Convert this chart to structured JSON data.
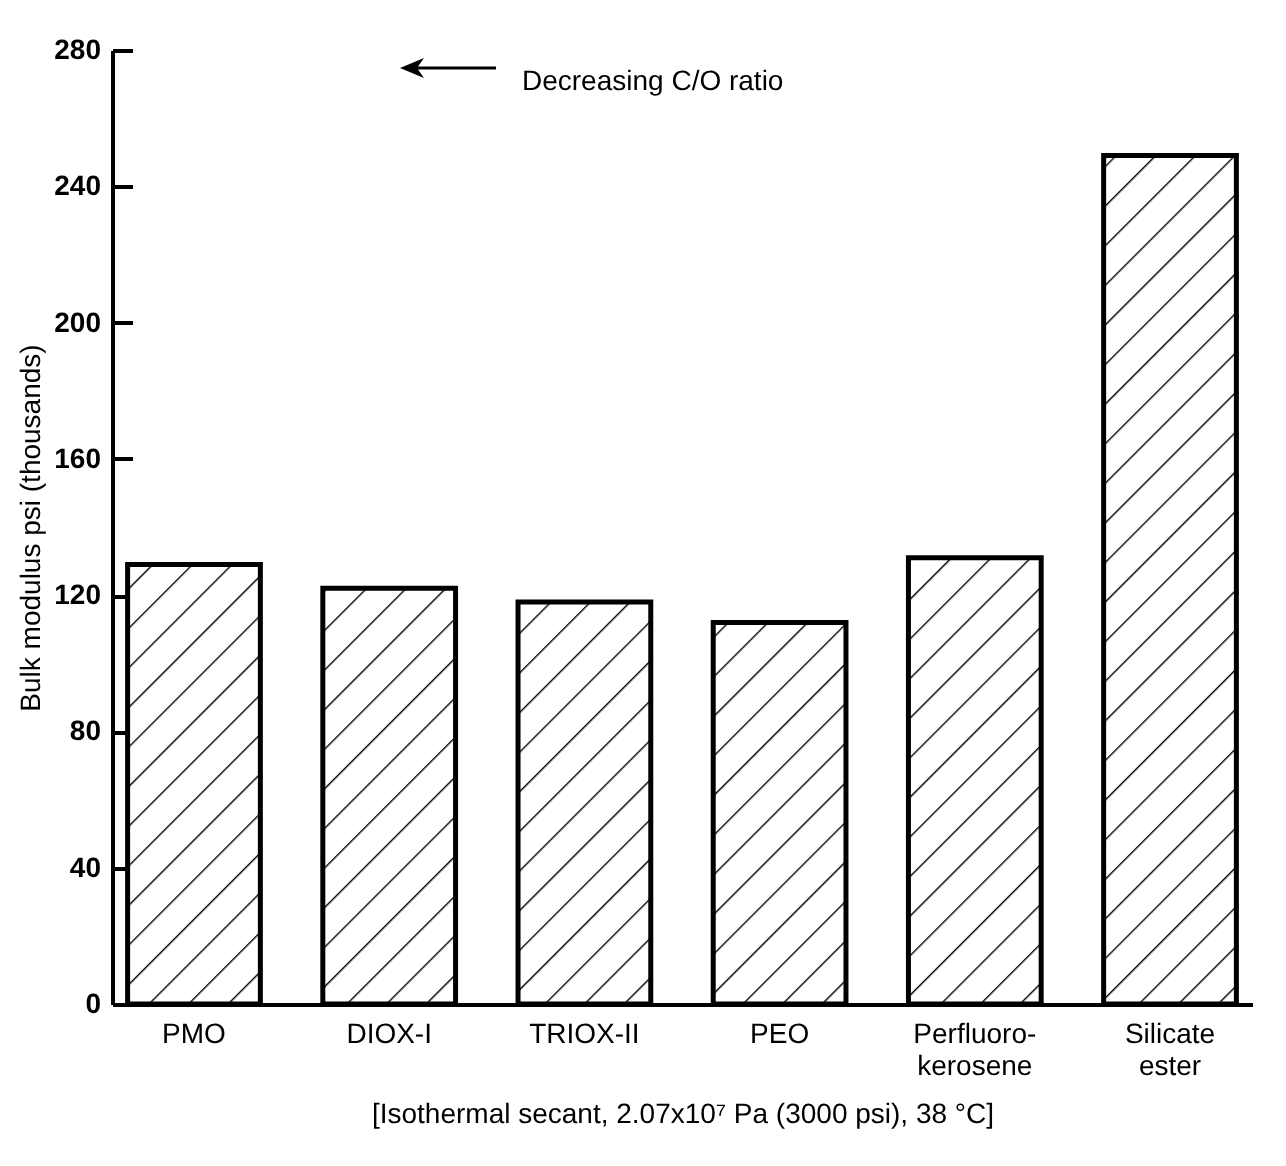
{
  "chart_data": {
    "type": "bar",
    "categories": [
      "PMO",
      "DIOX-I",
      "TRIOX-II",
      "PEO",
      "Perfluoro-kerosene",
      "Silicate ester"
    ],
    "values": [
      129,
      122,
      118,
      112,
      131,
      249
    ],
    "color": "#000000",
    "ylabel": "Bulk modulus psi (thousands)",
    "xlabel": "[Isothermal secant, 2.07x10⁷ Pa (3000 psi), 38 °C]",
    "annotations": [
      "Decreasing C/O ratio"
    ],
    "ylim": [
      0,
      280
    ],
    "yticks": [
      0,
      40,
      80,
      120,
      160,
      200,
      240,
      280
    ],
    "grid": false
  }
}
